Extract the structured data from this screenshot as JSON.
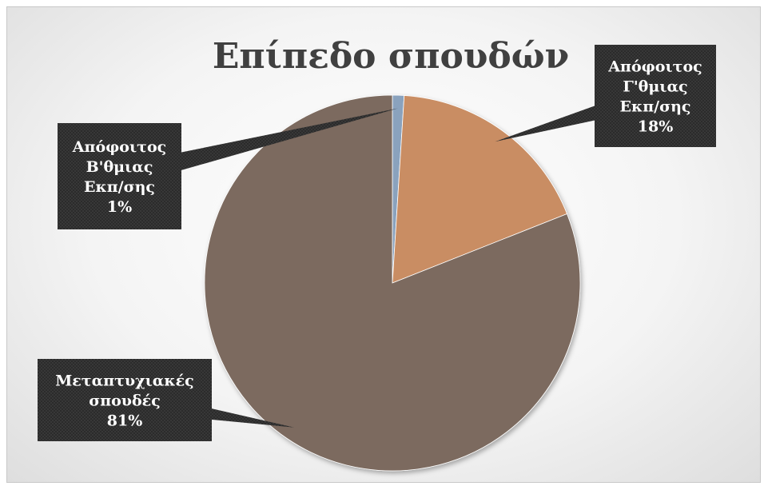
{
  "chart_data": {
    "type": "pie",
    "title": "Επίπεδο σπουδών",
    "slices": [
      {
        "label": [
          "Απόφοιτος",
          "Β'θμιας",
          "Εκπ/σης"
        ],
        "value": 1,
        "percent_label": "1%",
        "color": "#8aa2bd"
      },
      {
        "label": [
          "Απόφοιτος",
          "Γ'θμιας",
          "Εκπ/σης"
        ],
        "value": 18,
        "percent_label": "18%",
        "color": "#c98d63"
      },
      {
        "label": [
          "Μεταπτυχιακές",
          "σπουδές"
        ],
        "value": 81,
        "percent_label": "81%",
        "color": "#7c6a5e"
      }
    ],
    "legend": "none",
    "data_labels": "callout"
  },
  "colors": {
    "label_box": "#2f2f2f",
    "title_text": "#404040"
  }
}
